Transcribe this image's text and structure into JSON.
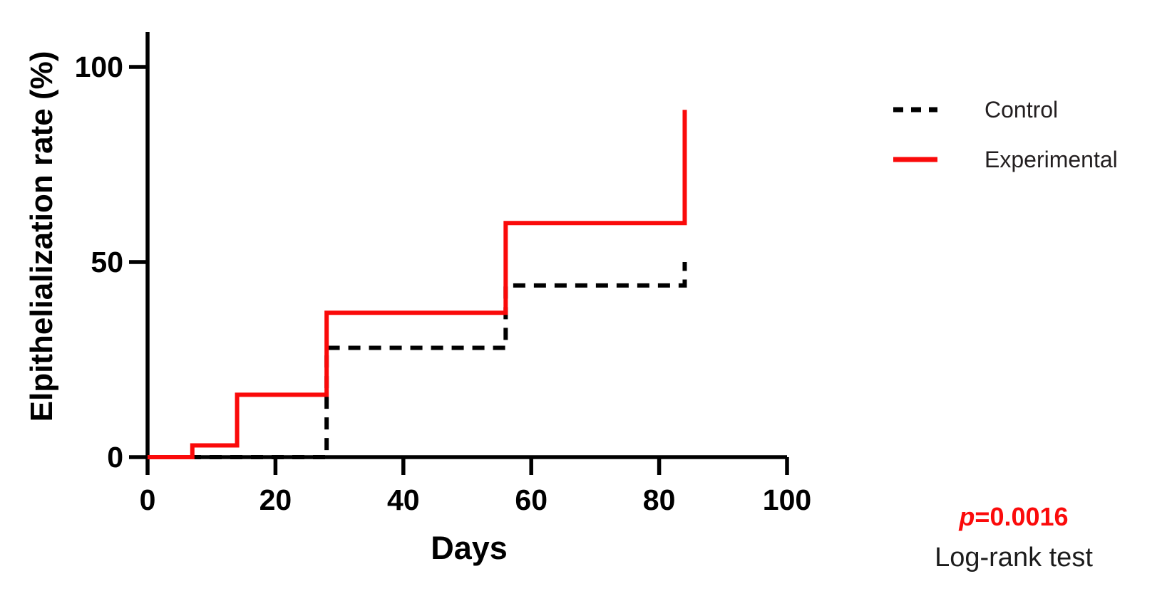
{
  "figure": {
    "background": "#ffffff",
    "axis_color": "#000000"
  },
  "chart_data": {
    "type": "line",
    "subtype": "kaplan-meier-step-curve",
    "title": "",
    "xlabel": "Days",
    "ylabel": "Elpithelialization rate (%)",
    "xlim": [
      0,
      100
    ],
    "ylim": [
      0,
      110
    ],
    "xticks": [
      0,
      20,
      40,
      60,
      80,
      100
    ],
    "yticks": [
      0,
      50,
      100
    ],
    "grid": false,
    "legend_position": "right-outside",
    "series": [
      {
        "name": "Control",
        "line_style": "dashed",
        "color": "#000000",
        "points": [
          [
            0,
            0
          ],
          [
            28,
            0
          ],
          [
            28,
            28
          ],
          [
            56,
            28
          ],
          [
            56,
            44
          ],
          [
            84,
            44
          ],
          [
            84,
            50
          ]
        ],
        "steps": [
          {
            "day": 28,
            "value": 28
          },
          {
            "day": 56,
            "value": 44
          },
          {
            "day": 84,
            "value": 50
          }
        ]
      },
      {
        "name": "Experimental",
        "line_style": "solid",
        "color": "#fa0a0a",
        "points": [
          [
            0,
            0
          ],
          [
            7,
            0
          ],
          [
            7,
            3
          ],
          [
            14,
            3
          ],
          [
            14,
            16
          ],
          [
            28,
            16
          ],
          [
            28,
            37
          ],
          [
            56,
            37
          ],
          [
            56,
            60
          ],
          [
            84,
            60
          ],
          [
            84,
            89
          ]
        ],
        "steps": [
          {
            "day": 7,
            "value": 3
          },
          {
            "day": 14,
            "value": 16
          },
          {
            "day": 28,
            "value": 37
          },
          {
            "day": 56,
            "value": 60
          },
          {
            "day": 84,
            "value": 89
          }
        ]
      }
    ]
  },
  "legend": {
    "items": [
      {
        "label": "Control",
        "style": "dashed",
        "color": "#000000"
      },
      {
        "label": "Experimental",
        "style": "solid",
        "color": "#fa0a0a"
      }
    ]
  },
  "annotation": {
    "p_symbol": "p",
    "p_value": "=0.0016",
    "p_color": "#fb0b0b",
    "test_label": "Log-rank test"
  }
}
